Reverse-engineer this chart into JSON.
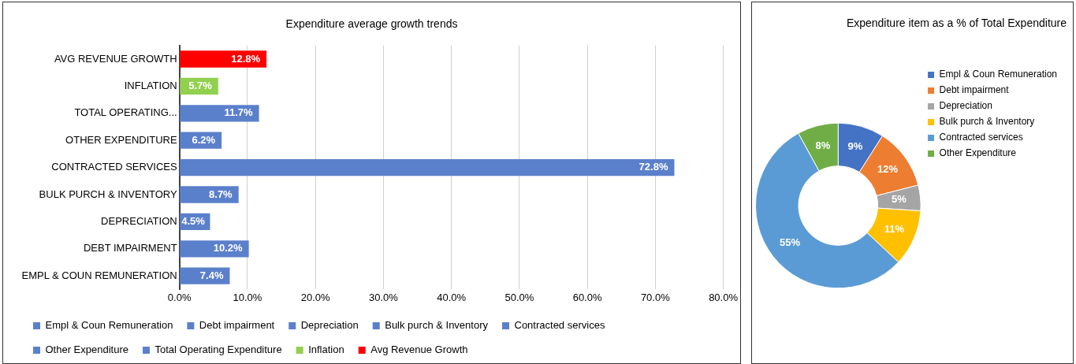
{
  "chart_data": [
    {
      "type": "bar",
      "title": "Expenditure average growth trends",
      "orientation": "horizontal",
      "stacked": true,
      "grid": "x",
      "legend": "bottom",
      "categories": [
        "AVG REVENUE GROWTH",
        "INFLATION",
        "TOTAL OPERATING...",
        "OTHER EXPENDITURE",
        "CONTRACTED SERVICES",
        "BULK PURCH & INVENTORY",
        "DEPRECIATION",
        "DEBT IMPAIRMENT",
        "EMPL & COUN REMUNERATION"
      ],
      "xlim": [
        0,
        80
      ],
      "xticks": [
        {
          "value": 0,
          "label": "0.0%"
        },
        {
          "value": 10,
          "label": "10.0%"
        },
        {
          "value": 20,
          "label": "20.0%"
        },
        {
          "value": 30,
          "label": "30.0%"
        },
        {
          "value": 40,
          "label": "40.0%"
        },
        {
          "value": 50,
          "label": "50.0%"
        },
        {
          "value": 60,
          "label": "60.0%"
        },
        {
          "value": 70,
          "label": "70.0%"
        },
        {
          "value": 80,
          "label": "80.0%"
        }
      ],
      "series": [
        {
          "name": "Empl & Coun Remuneration",
          "color": "#5b80cb",
          "values": [
            null,
            null,
            null,
            null,
            null,
            null,
            null,
            null,
            7.4
          ],
          "value_labels": [
            null,
            null,
            null,
            null,
            null,
            null,
            null,
            null,
            "7.4%"
          ]
        },
        {
          "name": "Debt impairment",
          "color": "#5b80cb",
          "values": [
            null,
            null,
            null,
            null,
            null,
            null,
            null,
            10.2,
            null
          ],
          "value_labels": [
            null,
            null,
            null,
            null,
            null,
            null,
            null,
            "10.2%",
            null
          ]
        },
        {
          "name": "Depreciation",
          "color": "#5b80cb",
          "values": [
            null,
            null,
            null,
            null,
            null,
            null,
            4.5,
            null,
            null
          ],
          "value_labels": [
            null,
            null,
            null,
            null,
            null,
            null,
            "4.5%",
            null,
            null
          ]
        },
        {
          "name": "Bulk purch & Inventory",
          "color": "#5b80cb",
          "values": [
            null,
            null,
            null,
            null,
            null,
            8.7,
            null,
            null,
            null
          ],
          "value_labels": [
            null,
            null,
            null,
            null,
            null,
            "8.7%",
            null,
            null,
            null
          ]
        },
        {
          "name": "Contracted services",
          "color": "#5b80cb",
          "values": [
            null,
            null,
            null,
            null,
            72.8,
            null,
            null,
            null,
            null
          ],
          "value_labels": [
            null,
            null,
            null,
            null,
            "72.8%",
            null,
            null,
            null,
            null
          ]
        },
        {
          "name": "Other Expenditure",
          "color": "#5b80cb",
          "values": [
            null,
            null,
            null,
            6.2,
            null,
            null,
            null,
            null,
            null
          ],
          "value_labels": [
            null,
            null,
            null,
            "6.2%",
            null,
            null,
            null,
            null,
            null
          ]
        },
        {
          "name": "Total Operating Expenditure",
          "color": "#5b80cb",
          "values": [
            null,
            null,
            11.7,
            null,
            null,
            null,
            null,
            null,
            null
          ],
          "value_labels": [
            null,
            null,
            "11.7%",
            null,
            null,
            null,
            null,
            null,
            null
          ]
        },
        {
          "name": "Inflation",
          "color": "#92d050",
          "values": [
            null,
            5.7,
            null,
            null,
            null,
            null,
            null,
            null,
            null
          ],
          "value_labels": [
            null,
            "5.7%",
            null,
            null,
            null,
            null,
            null,
            null,
            null
          ]
        },
        {
          "name": "Avg Revenue Growth",
          "color": "#ff0000",
          "values": [
            12.8,
            null,
            null,
            null,
            null,
            null,
            null,
            null,
            null
          ],
          "value_labels": [
            "12.8%",
            null,
            null,
            null,
            null,
            null,
            null,
            null,
            null
          ]
        }
      ]
    },
    {
      "type": "donut",
      "title": "Expenditure item as a % of Total Expenditure",
      "legend": "right",
      "categories": [
        "Empl & Coun Remuneration",
        "Debt impairment",
        "Depreciation",
        "Bulk purch & Inventory",
        "Contracted services",
        "Other Expenditure"
      ],
      "values": [
        9,
        12,
        5,
        11,
        55,
        8
      ],
      "colors": [
        "#4472c4",
        "#ed7d31",
        "#a5a5a5",
        "#ffc000",
        "#5b9bd5",
        "#70ad47"
      ],
      "value_labels": [
        "9%",
        "12%",
        "5%",
        "11%",
        "55%",
        "8%"
      ]
    }
  ]
}
